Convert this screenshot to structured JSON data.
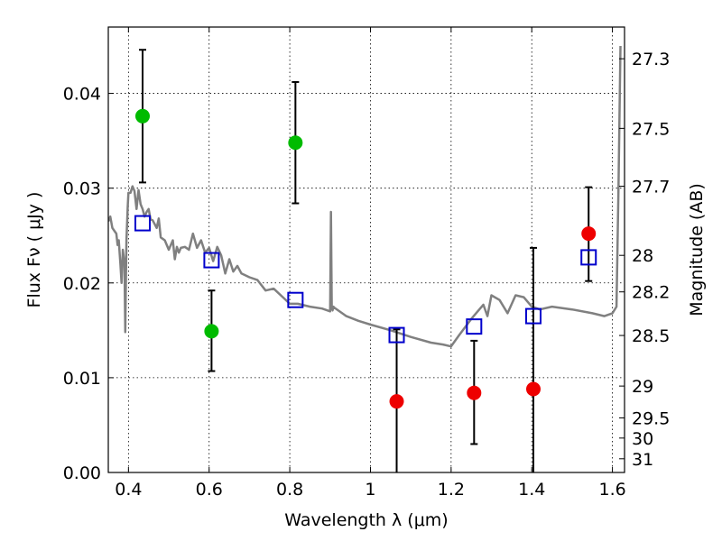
{
  "chart_data": {
    "type": "scatter",
    "xlabel": "Wavelength  λ (μm)",
    "ylabel": "Flux  Fν  ( μJy )",
    "y2label": "Magnitude (AB)",
    "xlim": [
      0.35,
      1.63
    ],
    "ylim": [
      0.0,
      0.047
    ],
    "grid": true,
    "x_ticks": [
      0.4,
      0.6,
      0.8,
      1.0,
      1.2,
      1.4,
      1.6
    ],
    "x_tick_labels": [
      "0.4",
      "0.6",
      "0.8",
      "1",
      "1.2",
      "1.4",
      "1.6"
    ],
    "y_ticks": [
      0.0,
      0.01,
      0.02,
      0.03,
      0.04
    ],
    "y_tick_labels": [
      "0.00",
      "0.01",
      "0.02",
      "0.03",
      "0.04"
    ],
    "mag_ticks": [
      27.3,
      27.5,
      27.7,
      28,
      28.2,
      28.5,
      29,
      29.5,
      30,
      31
    ],
    "mag_tick_labels": [
      "27.3",
      "27.5",
      "27.7",
      "28",
      "28.2",
      "28.5",
      "29",
      "29.5",
      "30",
      "31"
    ],
    "series": [
      {
        "marker": "circle",
        "color": "#00bb00",
        "points": [
          {
            "x": 0.435,
            "y": 0.0376,
            "err_low": 0.0306,
            "err_high": 0.0446
          },
          {
            "x": 0.606,
            "y": 0.0149,
            "err_low": 0.0107,
            "err_high": 0.0192
          },
          {
            "x": 0.814,
            "y": 0.0348,
            "err_low": 0.0284,
            "err_high": 0.0412
          }
        ]
      },
      {
        "marker": "circle",
        "color": "#ee0000",
        "points": [
          {
            "x": 1.065,
            "y": 0.0075,
            "err_low": 0.0,
            "err_high": 0.0151
          },
          {
            "x": 1.257,
            "y": 0.0084,
            "err_low": 0.003,
            "err_high": 0.0139
          },
          {
            "x": 1.404,
            "y": 0.0088,
            "err_low": 0.0,
            "err_high": 0.0237
          },
          {
            "x": 1.541,
            "y": 0.0252,
            "err_low": 0.0202,
            "err_high": 0.0301
          }
        ]
      },
      {
        "marker": "open-square",
        "color": "#0000cc",
        "points": [
          {
            "x": 0.435,
            "y": 0.0263
          },
          {
            "x": 0.606,
            "y": 0.0224
          },
          {
            "x": 0.814,
            "y": 0.0182
          },
          {
            "x": 1.065,
            "y": 0.0145
          },
          {
            "x": 1.257,
            "y": 0.0154
          },
          {
            "x": 1.404,
            "y": 0.0165
          },
          {
            "x": 1.541,
            "y": 0.0227
          }
        ]
      }
    ],
    "model_spectrum": {
      "color": "#808080",
      "x": [
        0.35,
        0.355,
        0.36,
        0.365,
        0.37,
        0.373,
        0.376,
        0.38,
        0.383,
        0.386,
        0.39,
        0.392,
        0.395,
        0.398,
        0.4,
        0.405,
        0.41,
        0.415,
        0.42,
        0.425,
        0.43,
        0.435,
        0.44,
        0.445,
        0.45,
        0.455,
        0.46,
        0.465,
        0.47,
        0.475,
        0.48,
        0.49,
        0.5,
        0.51,
        0.515,
        0.52,
        0.525,
        0.53,
        0.54,
        0.55,
        0.56,
        0.57,
        0.58,
        0.59,
        0.6,
        0.61,
        0.62,
        0.63,
        0.64,
        0.65,
        0.66,
        0.67,
        0.68,
        0.7,
        0.72,
        0.74,
        0.76,
        0.78,
        0.8,
        0.82,
        0.85,
        0.88,
        0.9,
        0.902,
        0.904,
        0.906,
        0.908,
        0.91,
        0.94,
        0.97,
        1.0,
        1.05,
        1.1,
        1.15,
        1.18,
        1.2,
        1.22,
        1.25,
        1.27,
        1.28,
        1.29,
        1.3,
        1.32,
        1.34,
        1.36,
        1.38,
        1.4,
        1.42,
        1.45,
        1.5,
        1.55,
        1.58,
        1.6,
        1.61,
        1.615,
        1.62
      ],
      "y": [
        0.0265,
        0.027,
        0.0258,
        0.0255,
        0.0252,
        0.024,
        0.0245,
        0.022,
        0.02,
        0.0235,
        0.0222,
        0.0148,
        0.0245,
        0.028,
        0.0295,
        0.0295,
        0.0302,
        0.0297,
        0.0278,
        0.0298,
        0.0283,
        0.0278,
        0.027,
        0.0275,
        0.0278,
        0.0267,
        0.0266,
        0.0262,
        0.0258,
        0.0268,
        0.0248,
        0.0245,
        0.0235,
        0.0245,
        0.0225,
        0.0238,
        0.0232,
        0.0237,
        0.0238,
        0.0235,
        0.0252,
        0.0237,
        0.0245,
        0.0232,
        0.0237,
        0.0223,
        0.0238,
        0.0229,
        0.021,
        0.0225,
        0.0212,
        0.0218,
        0.021,
        0.0206,
        0.0203,
        0.0192,
        0.0194,
        0.0186,
        0.0178,
        0.0178,
        0.0175,
        0.0173,
        0.017,
        0.0275,
        0.0175,
        0.0171,
        0.0175,
        0.0174,
        0.0165,
        0.016,
        0.0156,
        0.015,
        0.0143,
        0.0137,
        0.0135,
        0.0133,
        0.0145,
        0.0162,
        0.0172,
        0.0177,
        0.0165,
        0.0187,
        0.0182,
        0.0168,
        0.0187,
        0.0185,
        0.0175,
        0.0172,
        0.0175,
        0.0172,
        0.0168,
        0.0165,
        0.0168,
        0.0175,
        0.03,
        0.045
      ]
    }
  }
}
